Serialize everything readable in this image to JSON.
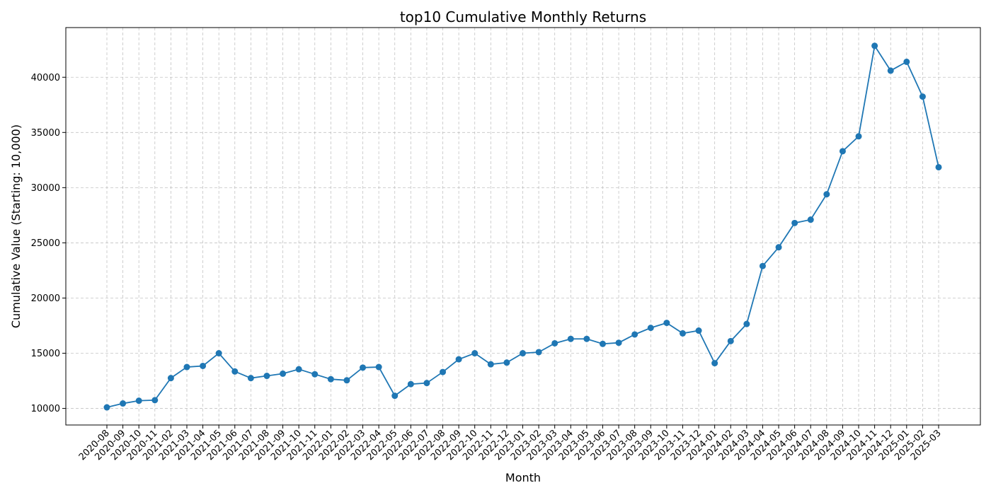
{
  "chart_data": {
    "type": "line",
    "title": "top10 Cumulative Monthly Returns",
    "xlabel": "Month",
    "ylabel": "Cumulative Value (Starting: 10,000)",
    "ylim": [
      8500,
      44500
    ],
    "yticks": [
      10000,
      15000,
      20000,
      25000,
      30000,
      35000,
      40000
    ],
    "grid": true,
    "line_color": "#1f77b4",
    "categories": [
      "2020-08",
      "2020-09",
      "2020-10",
      "2020-11",
      "2021-02",
      "2021-03",
      "2021-04",
      "2021-05",
      "2021-06",
      "2021-07",
      "2021-08",
      "2021-09",
      "2021-10",
      "2021-11",
      "2022-01",
      "2022-02",
      "2022-03",
      "2022-04",
      "2022-05",
      "2022-06",
      "2022-07",
      "2022-08",
      "2022-09",
      "2022-10",
      "2022-11",
      "2022-12",
      "2023-01",
      "2023-02",
      "2023-03",
      "2023-04",
      "2023-05",
      "2023-06",
      "2023-07",
      "2023-08",
      "2023-09",
      "2023-10",
      "2023-11",
      "2023-12",
      "2024-01",
      "2024-02",
      "2024-03",
      "2024-04",
      "2024-05",
      "2024-06",
      "2024-07",
      "2024-08",
      "2024-09",
      "2024-10",
      "2024-11",
      "2024-12",
      "2025-01",
      "2025-02",
      "2025-03"
    ],
    "values": [
      10100,
      10450,
      10700,
      10750,
      12750,
      13750,
      13850,
      15000,
      13350,
      12750,
      12950,
      13150,
      13550,
      13100,
      12650,
      12550,
      13700,
      13750,
      11150,
      12200,
      12300,
      13300,
      14450,
      15000,
      14000,
      14150,
      15000,
      15100,
      15900,
      16300,
      16300,
      15850,
      15950,
      16700,
      17300,
      17750,
      16800,
      17050,
      14100,
      16100,
      17650,
      22900,
      24600,
      26800,
      27100,
      29400,
      33300,
      34650,
      42850,
      40600,
      41400,
      38250,
      31850
    ]
  }
}
